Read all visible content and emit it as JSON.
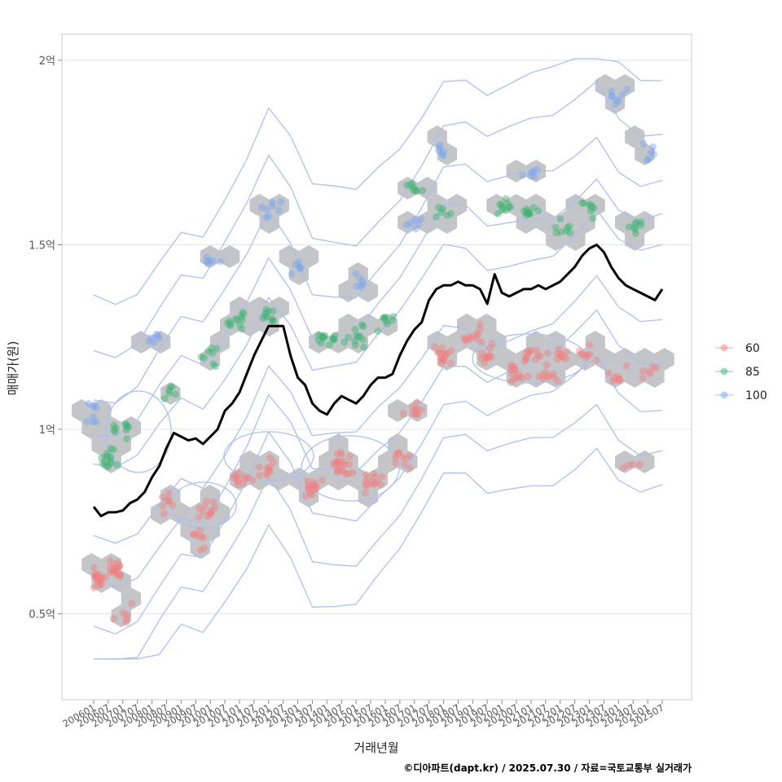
{
  "chart_data": {
    "type": "scatter",
    "xlabel": "거래년월",
    "ylabel": "매매가(원)",
    "caption": "©디아파트(dapt.kr) / 2025.07.30 / 자료=국토교통부 실거래가",
    "x_ticks": [
      "200601",
      "200607",
      "200701",
      "200707",
      "200801",
      "200807",
      "200901",
      "200907",
      "201001",
      "201007",
      "201101",
      "201107",
      "201201",
      "201207",
      "201301",
      "201307",
      "201401",
      "201407",
      "201501",
      "201507",
      "201601",
      "201607",
      "201701",
      "201707",
      "201801",
      "201807",
      "201901",
      "201907",
      "202001",
      "202007",
      "202101",
      "202107",
      "202201",
      "202207",
      "202301",
      "202307",
      "202401",
      "202407",
      "202501",
      "202507"
    ],
    "y_ticks": [
      {
        "value": 0.5,
        "label": "0.5억"
      },
      {
        "value": 1.0,
        "label": "1억"
      },
      {
        "value": 1.5,
        "label": "1.5억"
      },
      {
        "value": 2.0,
        "label": "2억"
      }
    ],
    "y_unit": "억",
    "xlim": [
      "200601",
      "202507"
    ],
    "ylim": [
      0.27,
      2.07
    ],
    "grid": true,
    "legend_position": "right",
    "series": [
      {
        "name": "60",
        "color": "#f08080",
        "clusters": [
          {
            "x": "200603",
            "y": 0.6,
            "n": 20
          },
          {
            "x": "200610",
            "y": 0.62,
            "n": 18
          },
          {
            "x": "200701",
            "y": 0.5,
            "n": 6
          },
          {
            "x": "200807",
            "y": 0.8,
            "n": 8
          },
          {
            "x": "200907",
            "y": 0.7,
            "n": 8
          },
          {
            "x": "201001",
            "y": 0.78,
            "n": 12
          },
          {
            "x": "201101",
            "y": 0.86,
            "n": 12
          },
          {
            "x": "201201",
            "y": 0.9,
            "n": 10
          },
          {
            "x": "201307",
            "y": 0.85,
            "n": 16
          },
          {
            "x": "201407",
            "y": 0.9,
            "n": 22
          },
          {
            "x": "201507",
            "y": 0.85,
            "n": 14
          },
          {
            "x": "201607",
            "y": 0.92,
            "n": 10
          },
          {
            "x": "201701",
            "y": 1.05,
            "n": 10
          },
          {
            "x": "201801",
            "y": 1.2,
            "n": 16
          },
          {
            "x": "201901",
            "y": 1.25,
            "n": 12
          },
          {
            "x": "201907",
            "y": 1.2,
            "n": 12
          },
          {
            "x": "202007",
            "y": 1.15,
            "n": 14
          },
          {
            "x": "202101",
            "y": 1.2,
            "n": 12
          },
          {
            "x": "202107",
            "y": 1.15,
            "n": 10
          },
          {
            "x": "202201",
            "y": 1.2,
            "n": 10
          },
          {
            "x": "202301",
            "y": 1.2,
            "n": 8
          },
          {
            "x": "202401",
            "y": 1.15,
            "n": 8
          },
          {
            "x": "202501",
            "y": 1.15,
            "n": 6
          },
          {
            "x": "202407",
            "y": 0.9,
            "n": 4
          }
        ]
      },
      {
        "name": "85",
        "color": "#3cb371",
        "clusters": [
          {
            "x": "200607",
            "y": 0.92,
            "n": 14
          },
          {
            "x": "200701",
            "y": 1.0,
            "n": 10
          },
          {
            "x": "200807",
            "y": 1.1,
            "n": 6
          },
          {
            "x": "201001",
            "y": 1.2,
            "n": 8
          },
          {
            "x": "201101",
            "y": 1.3,
            "n": 12
          },
          {
            "x": "201201",
            "y": 1.3,
            "n": 10
          },
          {
            "x": "201401",
            "y": 1.25,
            "n": 12
          },
          {
            "x": "201501",
            "y": 1.25,
            "n": 12
          },
          {
            "x": "201601",
            "y": 1.3,
            "n": 8
          },
          {
            "x": "201701",
            "y": 1.65,
            "n": 8
          },
          {
            "x": "201801",
            "y": 1.6,
            "n": 6
          },
          {
            "x": "202001",
            "y": 1.6,
            "n": 10
          },
          {
            "x": "202101",
            "y": 1.6,
            "n": 10
          },
          {
            "x": "202201",
            "y": 1.55,
            "n": 8
          },
          {
            "x": "202301",
            "y": 1.6,
            "n": 8
          },
          {
            "x": "202407",
            "y": 1.55,
            "n": 8
          }
        ]
      },
      {
        "name": "100",
        "color": "#7da6ef",
        "clusters": [
          {
            "x": "200601",
            "y": 1.05,
            "n": 8
          },
          {
            "x": "200801",
            "y": 1.25,
            "n": 6
          },
          {
            "x": "201001",
            "y": 1.45,
            "n": 6
          },
          {
            "x": "201201",
            "y": 1.6,
            "n": 8
          },
          {
            "x": "201301",
            "y": 1.45,
            "n": 6
          },
          {
            "x": "201501",
            "y": 1.4,
            "n": 6
          },
          {
            "x": "201701",
            "y": 1.55,
            "n": 6
          },
          {
            "x": "201801",
            "y": 1.75,
            "n": 6
          },
          {
            "x": "202101",
            "y": 1.7,
            "n": 6
          },
          {
            "x": "202401",
            "y": 1.9,
            "n": 8
          },
          {
            "x": "202501",
            "y": 1.75,
            "n": 6
          }
        ]
      }
    ],
    "trend_line": {
      "color": "#000000",
      "points": [
        [
          "200601",
          0.79
        ],
        [
          "200604",
          0.765
        ],
        [
          "200607",
          0.775
        ],
        [
          "200610",
          0.775
        ],
        [
          "200701",
          0.78
        ],
        [
          "200704",
          0.8
        ],
        [
          "200707",
          0.81
        ],
        [
          "200710",
          0.83
        ],
        [
          "200801",
          0.87
        ],
        [
          "200804",
          0.9
        ],
        [
          "200807",
          0.95
        ],
        [
          "200810",
          0.99
        ],
        [
          "200901",
          0.98
        ],
        [
          "200904",
          0.97
        ],
        [
          "200907",
          0.975
        ],
        [
          "200910",
          0.96
        ],
        [
          "201001",
          0.98
        ],
        [
          "201004",
          1.0
        ],
        [
          "201007",
          1.05
        ],
        [
          "201010",
          1.07
        ],
        [
          "201101",
          1.1
        ],
        [
          "201104",
          1.15
        ],
        [
          "201107",
          1.2
        ],
        [
          "201110",
          1.24
        ],
        [
          "201201",
          1.28
        ],
        [
          "201204",
          1.28
        ],
        [
          "201207",
          1.28
        ],
        [
          "201210",
          1.2
        ],
        [
          "201301",
          1.14
        ],
        [
          "201304",
          1.12
        ],
        [
          "201307",
          1.07
        ],
        [
          "201310",
          1.05
        ],
        [
          "201401",
          1.04
        ],
        [
          "201404",
          1.07
        ],
        [
          "201407",
          1.09
        ],
        [
          "201410",
          1.08
        ],
        [
          "201501",
          1.07
        ],
        [
          "201504",
          1.09
        ],
        [
          "201507",
          1.12
        ],
        [
          "201510",
          1.14
        ],
        [
          "201601",
          1.14
        ],
        [
          "201604",
          1.15
        ],
        [
          "201607",
          1.2
        ],
        [
          "201610",
          1.24
        ],
        [
          "201701",
          1.27
        ],
        [
          "201704",
          1.29
        ],
        [
          "201707",
          1.35
        ],
        [
          "201710",
          1.38
        ],
        [
          "201801",
          1.39
        ],
        [
          "201804",
          1.39
        ],
        [
          "201807",
          1.4
        ],
        [
          "201810",
          1.39
        ],
        [
          "201901",
          1.39
        ],
        [
          "201904",
          1.38
        ],
        [
          "201907",
          1.34
        ],
        [
          "201910",
          1.42
        ],
        [
          "202001",
          1.37
        ],
        [
          "202004",
          1.36
        ],
        [
          "202007",
          1.37
        ],
        [
          "202010",
          1.38
        ],
        [
          "202101",
          1.38
        ],
        [
          "202104",
          1.39
        ],
        [
          "202107",
          1.38
        ],
        [
          "202110",
          1.39
        ],
        [
          "202201",
          1.4
        ],
        [
          "202204",
          1.42
        ],
        [
          "202207",
          1.44
        ],
        [
          "202210",
          1.47
        ],
        [
          "202301",
          1.49
        ],
        [
          "202304",
          1.5
        ],
        [
          "202307",
          1.48
        ],
        [
          "202310",
          1.44
        ],
        [
          "202401",
          1.41
        ],
        [
          "202404",
          1.39
        ],
        [
          "202407",
          1.38
        ],
        [
          "202410",
          1.37
        ],
        [
          "202501",
          1.36
        ],
        [
          "202504",
          1.35
        ],
        [
          "202507",
          1.38
        ]
      ]
    }
  }
}
